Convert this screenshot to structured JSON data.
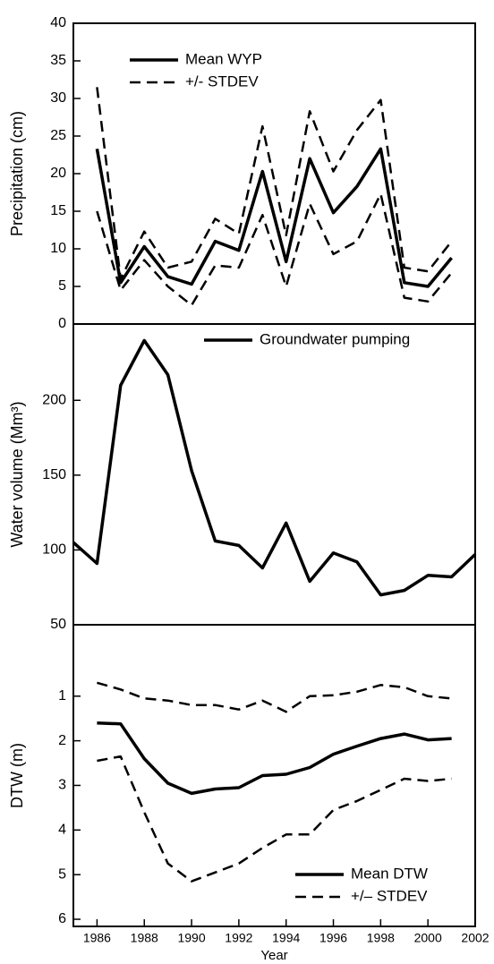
{
  "chart_data": [
    {
      "type": "line",
      "ylabel": "Precipitation (cm)",
      "xlim": [
        1985,
        2002
      ],
      "ylim": [
        0,
        40
      ],
      "yticks": [
        0,
        5,
        10,
        15,
        20,
        25,
        30,
        35,
        40
      ],
      "legend": "upper left",
      "x": [
        1986,
        1987,
        1988,
        1989,
        1990,
        1991,
        1992,
        1993,
        1994,
        1995,
        1996,
        1997,
        1998,
        1999,
        2000,
        2001
      ],
      "series": [
        {
          "name": "Mean WYP",
          "color": "#000000",
          "style": "solid",
          "values": [
            23.3,
            5.5,
            10.3,
            6.3,
            5.3,
            11,
            9.8,
            20.3,
            8.3,
            22,
            14.8,
            18.3,
            23.3,
            5.5,
            5,
            8.8
          ]
        },
        {
          "name": "+/- STDEV",
          "color": "#000000",
          "style": "dashed",
          "values": [
            31.5,
            6,
            12.3,
            7.5,
            8.3,
            14,
            12,
            26.3,
            11.8,
            28.3,
            20.3,
            25.8,
            29.8,
            7.5,
            7,
            11
          ]
        },
        {
          "color": "#000000",
          "style": "dashed",
          "values": [
            15,
            4.5,
            8.5,
            5,
            2.5,
            7.8,
            7.5,
            14.5,
            5,
            16,
            9.3,
            11,
            17.3,
            3.5,
            3,
            6.8
          ]
        }
      ]
    },
    {
      "type": "line",
      "ylabel": "Water volume (Mm³)",
      "xlim": [
        1985,
        2002
      ],
      "ylim": [
        50,
        251
      ],
      "yticks": [
        50,
        100,
        150,
        200
      ],
      "legend": "upper right",
      "x": [
        1985,
        1986,
        1987,
        1988,
        1989,
        1990,
        1991,
        1992,
        1993,
        1994,
        1995,
        1996,
        1997,
        1998,
        1999,
        2000,
        2001,
        2002
      ],
      "series": [
        {
          "name": "Groundwater pumping",
          "color": "#000000",
          "style": "solid",
          "values": [
            105,
            91,
            210,
            240,
            217,
            153,
            106,
            103,
            88,
            118,
            79,
            98,
            92,
            70,
            73,
            83,
            82,
            97
          ]
        }
      ]
    },
    {
      "type": "line",
      "ylabel": "DTW (m)",
      "xlabel": "Year",
      "xlim": [
        1985,
        2002
      ],
      "ylim": [
        -0.6,
        6.16
      ],
      "y_inverted": true,
      "yticks": [
        1,
        2,
        3,
        4,
        5,
        6
      ],
      "xticks": [
        1986,
        1988,
        1990,
        1992,
        1994,
        1996,
        1998,
        2000,
        2002
      ],
      "legend": "lower right",
      "x": [
        1986,
        1987,
        1988,
        1989,
        1990,
        1991,
        1992,
        1993,
        1994,
        1995,
        1996,
        1997,
        1998,
        1999,
        2000,
        2001
      ],
      "series": [
        {
          "name": "Mean DTW",
          "color": "#000000",
          "style": "solid",
          "values": [
            1.6,
            1.62,
            2.4,
            2.95,
            3.18,
            3.08,
            3.05,
            2.78,
            2.75,
            2.6,
            2.3,
            2.12,
            1.95,
            1.85,
            1.98,
            1.95
          ]
        },
        {
          "name": "+/– STDEV",
          "color": "#000000",
          "style": "dashed",
          "values": [
            0.7,
            0.85,
            1.05,
            1.1,
            1.2,
            1.2,
            1.3,
            1.1,
            1.35,
            1.0,
            0.98,
            0.9,
            0.75,
            0.8,
            1.0,
            1.05
          ]
        },
        {
          "color": "#000000",
          "style": "dashed",
          "values": [
            2.45,
            2.35,
            3.6,
            4.75,
            5.15,
            4.95,
            4.75,
            4.4,
            4.1,
            4.1,
            3.55,
            3.35,
            3.1,
            2.85,
            2.9,
            2.85
          ]
        }
      ]
    }
  ]
}
